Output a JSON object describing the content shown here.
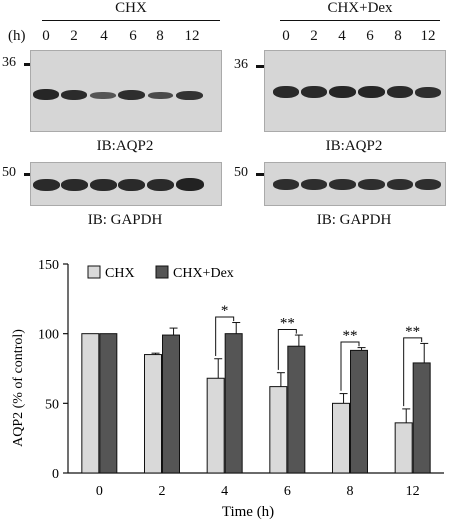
{
  "blots": {
    "hours_label": "(h)",
    "lanes": [
      "0",
      "2",
      "4",
      "6",
      "8",
      "12"
    ],
    "groups": [
      {
        "title": "CHX",
        "mw_top": "36",
        "mw_bottom": "50",
        "ib_top": "IB:AQP2",
        "ib_bottom": "IB: GAPDH"
      },
      {
        "title": "CHX+Dex",
        "mw_top": "36",
        "mw_bottom": "50",
        "ib_top": "IB:AQP2",
        "ib_bottom": "IB: GAPDH"
      }
    ]
  },
  "chart_data": {
    "type": "bar",
    "categories": [
      "0",
      "2",
      "4",
      "6",
      "8",
      "12"
    ],
    "series": [
      {
        "name": "CHX",
        "values": [
          100,
          85,
          68,
          62,
          50,
          36
        ],
        "errors": [
          0,
          1,
          14,
          10,
          7,
          10
        ],
        "color": "#d9d9d9"
      },
      {
        "name": "CHX+Dex",
        "values": [
          100,
          99,
          100,
          91,
          88,
          79
        ],
        "errors": [
          0,
          5,
          8,
          8,
          2,
          14
        ],
        "color": "#555555"
      }
    ],
    "xlabel": "Time (h)",
    "ylabel": "AQP2 (% of control)",
    "ylim": [
      0,
      150
    ],
    "yticks": [
      "0",
      "50",
      "100",
      "150"
    ],
    "significance": [
      "",
      "",
      "*",
      "**",
      "**",
      "**"
    ],
    "legend_position": "top-left",
    "grid": false
  }
}
